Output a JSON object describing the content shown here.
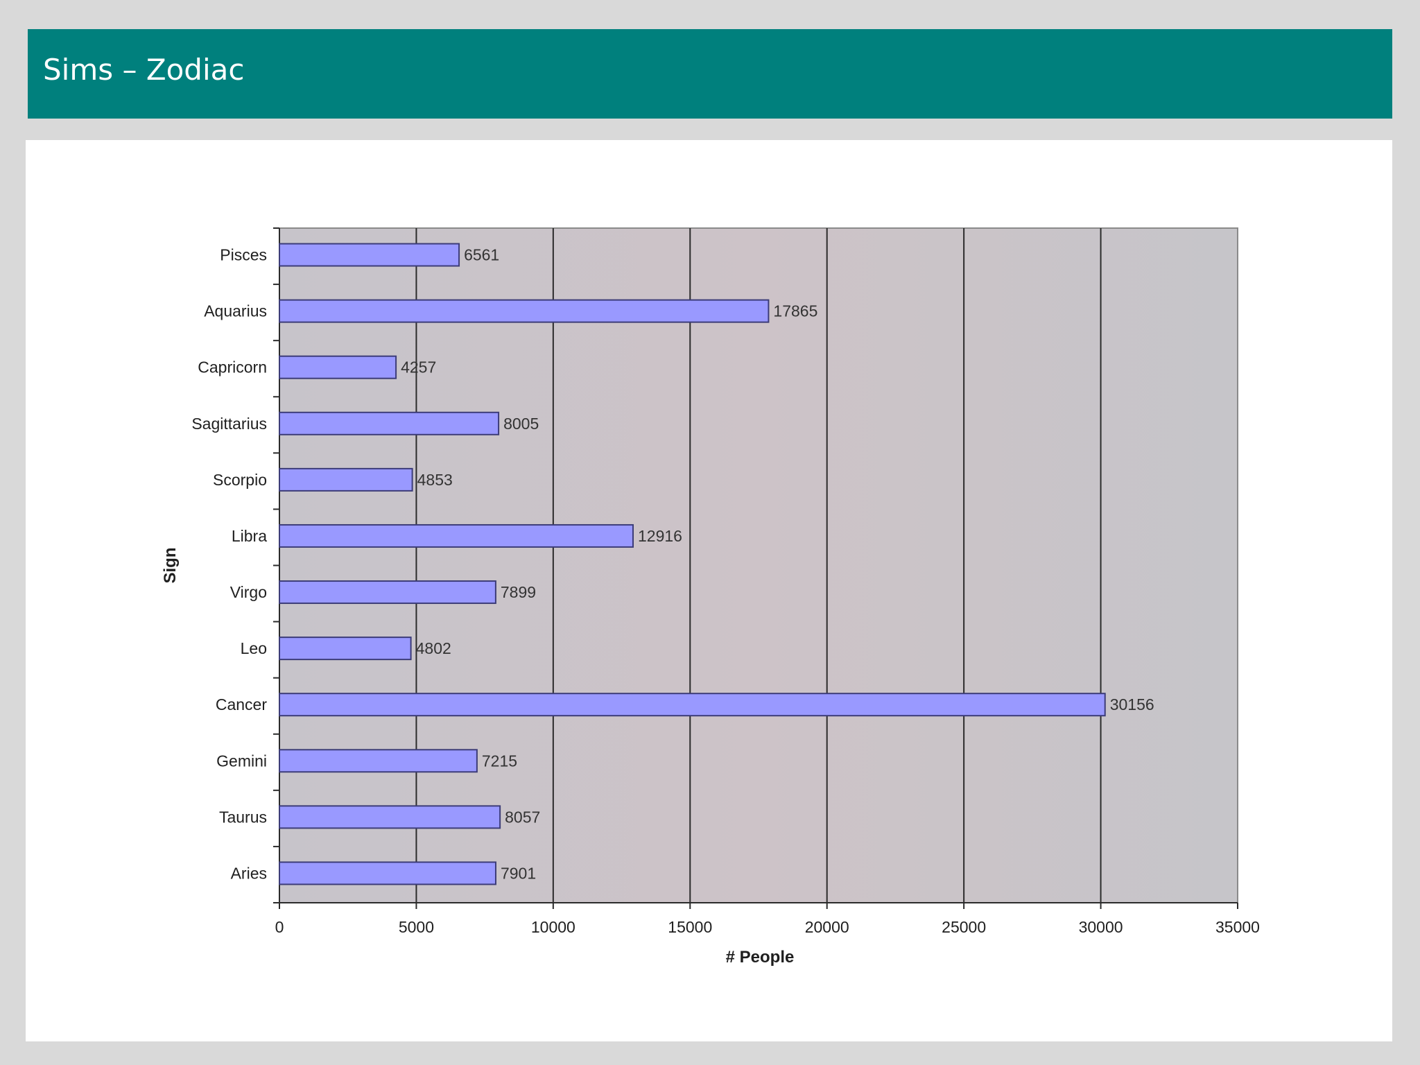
{
  "title": "Sims – Zodiac",
  "colors": {
    "title_bar": "#00807d",
    "bar_fill": "#9999ff",
    "bar_stroke": "#3c3c78",
    "plot_bg": "#c8c5cb"
  },
  "chart_data": {
    "type": "bar",
    "orientation": "horizontal",
    "categories": [
      "Pisces",
      "Aquarius",
      "Capricorn",
      "Sagittarius",
      "Scorpio",
      "Libra",
      "Virgo",
      "Leo",
      "Cancer",
      "Gemini",
      "Taurus",
      "Aries"
    ],
    "values": [
      6561,
      17865,
      4257,
      8005,
      4853,
      12916,
      7899,
      4802,
      30156,
      7215,
      8057,
      7901
    ],
    "value_labels": [
      "6561",
      "17865",
      "4257",
      "8005",
      "4853",
      "12916",
      "7899",
      "4802",
      "30156",
      "7215",
      "8057",
      "7901"
    ],
    "xlabel": "# People",
    "ylabel": "Sign",
    "xlim": [
      0,
      35000
    ],
    "xticks": [
      0,
      5000,
      10000,
      15000,
      20000,
      25000,
      30000,
      35000
    ],
    "xtick_labels": [
      "0",
      "5000",
      "10000",
      "15000",
      "20000",
      "25000",
      "30000",
      "35000"
    ],
    "grid": "vertical",
    "legend": "none"
  }
}
